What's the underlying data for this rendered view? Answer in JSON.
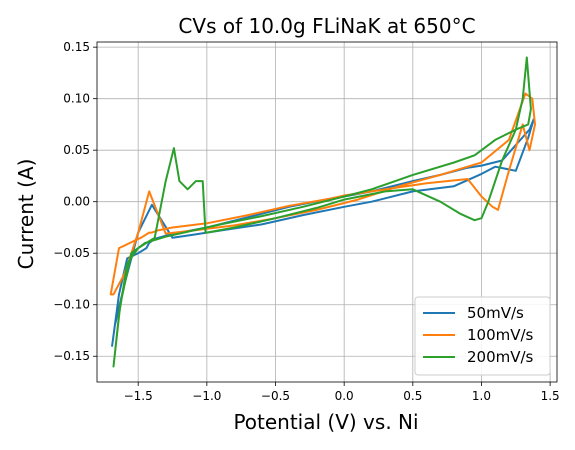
{
  "chart_data": {
    "type": "line",
    "title": "CVs of 10.0g FLiNaK at 650°C",
    "xlabel": "Potential (V) vs. Ni",
    "ylabel": "Current (A)",
    "xlim": [
      -1.8,
      1.55
    ],
    "ylim": [
      -0.175,
      0.155
    ],
    "xticks": [
      -1.5,
      -1.0,
      -0.5,
      0.0,
      0.5,
      1.0,
      1.5
    ],
    "xtick_labels": [
      "−1.5",
      "−1.0",
      "−0.5",
      "0.0",
      "0.5",
      "1.0",
      "1.5"
    ],
    "yticks": [
      -0.15,
      -0.1,
      -0.05,
      0.0,
      0.05,
      0.1,
      0.15
    ],
    "ytick_labels": [
      "−0.15",
      "−0.10",
      "−0.05",
      "0.00",
      "0.05",
      "0.10",
      "0.15"
    ],
    "grid": true,
    "legend_position": "lower-right",
    "series": [
      {
        "name": "50mV/s",
        "color": "#1f77b4",
        "x": [
          -1.69,
          -1.64,
          -1.58,
          -1.5,
          -1.44,
          -1.42,
          -1.38,
          -1.3,
          -1.2,
          -1.0,
          -0.7,
          -0.4,
          -0.1,
          0.0,
          0.2,
          0.5,
          0.7,
          0.9,
          1.0,
          1.15,
          1.25,
          1.35,
          1.38,
          1.34,
          1.25,
          1.1,
          1.0,
          0.8,
          0.5,
          0.2,
          0.0,
          -0.3,
          -0.6,
          -0.9,
          -1.1,
          -1.25,
          -1.4,
          -1.5,
          -1.6,
          -1.67,
          -1.69
        ],
        "y": [
          -0.14,
          -0.09,
          -0.055,
          -0.05,
          -0.045,
          -0.04,
          -0.036,
          -0.033,
          -0.03,
          -0.025,
          -0.015,
          -0.005,
          0.003,
          0.005,
          0.01,
          0.02,
          0.026,
          0.033,
          0.035,
          0.04,
          0.055,
          0.07,
          0.08,
          0.062,
          0.03,
          0.034,
          0.027,
          0.015,
          0.01,
          0.0,
          -0.005,
          -0.013,
          -0.022,
          -0.028,
          -0.032,
          -0.035,
          -0.003,
          -0.03,
          -0.08,
          -0.12,
          -0.14
        ]
      },
      {
        "name": "100mV/s",
        "color": "#ff7f0e",
        "x": [
          -1.7,
          -1.64,
          -1.56,
          -1.48,
          -1.42,
          -1.4,
          -1.36,
          -1.25,
          -1.0,
          -0.7,
          -0.4,
          -0.1,
          0.0,
          0.3,
          0.6,
          0.9,
          1.0,
          1.08,
          1.12,
          1.2,
          1.3,
          1.35,
          1.39,
          1.37,
          1.32,
          1.2,
          1.0,
          0.7,
          0.4,
          0.1,
          -0.2,
          -0.5,
          -0.8,
          -1.1,
          -1.3,
          -1.42,
          -1.5,
          -1.6,
          -1.68,
          -1.7
        ],
        "y": [
          -0.09,
          -0.045,
          -0.04,
          -0.035,
          -0.03,
          -0.03,
          -0.028,
          -0.025,
          -0.021,
          -0.013,
          -0.004,
          0.003,
          0.006,
          0.012,
          0.018,
          0.022,
          0.005,
          -0.005,
          -0.008,
          0.03,
          0.075,
          0.05,
          0.075,
          0.1,
          0.105,
          0.06,
          0.038,
          0.026,
          0.015,
          0.002,
          -0.008,
          -0.016,
          -0.023,
          -0.028,
          -0.031,
          0.01,
          -0.03,
          -0.07,
          -0.09,
          -0.09
        ]
      },
      {
        "name": "200mV/s",
        "color": "#2ca02c",
        "x": [
          -1.68,
          -1.64,
          -1.58,
          -1.5,
          -1.44,
          -1.38,
          -1.3,
          -1.24,
          -1.2,
          -1.14,
          -1.08,
          -1.03,
          -1.01,
          -1.0,
          -0.8,
          -0.5,
          -0.2,
          0.0,
          0.3,
          0.5,
          0.7,
          0.85,
          0.95,
          1.0,
          1.05,
          1.15,
          1.25,
          1.3,
          1.33,
          1.36,
          1.34,
          1.25,
          1.1,
          0.95,
          0.8,
          0.5,
          0.2,
          0.0,
          -0.3,
          -0.6,
          -0.9,
          -1.1,
          -1.3,
          -1.45,
          -1.55,
          -1.63,
          -1.68
        ],
        "y": [
          -0.16,
          -0.11,
          -0.06,
          -0.045,
          -0.04,
          -0.035,
          0.02,
          0.052,
          0.02,
          0.012,
          0.02,
          0.02,
          -0.03,
          -0.03,
          -0.025,
          -0.016,
          -0.006,
          0.002,
          0.01,
          0.012,
          0.0,
          -0.012,
          -0.018,
          -0.016,
          0.0,
          0.04,
          0.07,
          0.1,
          0.14,
          0.09,
          0.075,
          0.07,
          0.06,
          0.045,
          0.038,
          0.026,
          0.012,
          0.005,
          -0.005,
          -0.014,
          -0.022,
          -0.028,
          -0.034,
          -0.04,
          -0.05,
          -0.1,
          -0.16
        ]
      }
    ]
  }
}
